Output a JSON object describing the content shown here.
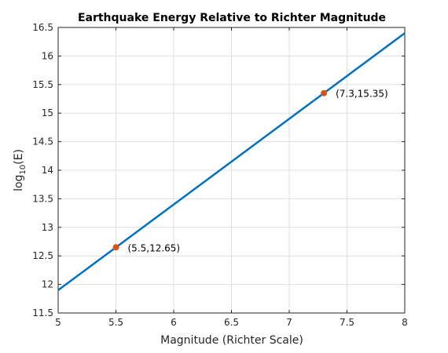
{
  "chart_data": {
    "type": "line",
    "title": "Earthquake Energy Relative to Richter Magnitude",
    "xlabel": "Magnitude (Richter Scale)",
    "ylabel_prefix": "log",
    "ylabel_sub": "10",
    "ylabel_suffix": "(E)",
    "xlim": [
      5,
      8
    ],
    "ylim": [
      11.5,
      16.5
    ],
    "grid": true,
    "xticks": [
      "5",
      "5.5",
      "6",
      "6.5",
      "7",
      "7.5",
      "8"
    ],
    "yticks": [
      "11.5",
      "12",
      "12.5",
      "13",
      "13.5",
      "14",
      "14.5",
      "15",
      "15.5",
      "16",
      "16.5"
    ],
    "series": [
      {
        "x": [
          5,
          8
        ],
        "y": [
          11.9,
          16.4
        ],
        "color": "#0072BD"
      }
    ],
    "points": [
      {
        "x": 5.5,
        "y": 12.65,
        "label": "(5.5,12.65)"
      },
      {
        "x": 7.3,
        "y": 15.35,
        "label": "(7.3,15.35)"
      }
    ],
    "point_color": "#D95319"
  }
}
